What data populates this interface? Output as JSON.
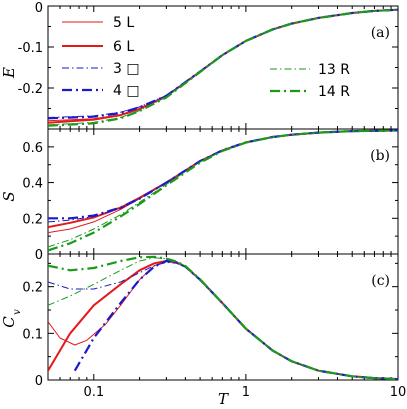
{
  "chart_data": [
    {
      "panel": "(a)",
      "type": "line",
      "ylabel": "E",
      "xlabel": "",
      "xscale": "log",
      "xlim": [
        0.05,
        10
      ],
      "ylim": [
        -0.3,
        0
      ],
      "xticks": [
        "0.1",
        "1",
        "10"
      ],
      "yticks": [
        "0",
        "-0.1",
        "-0.2"
      ],
      "legend_placement": "top-left and right",
      "series": [
        {
          "name": "5 L",
          "color": "#e31a1c",
          "style": "solid",
          "width": 1,
          "x": [
            0.05,
            0.1,
            0.15,
            0.2,
            0.3,
            0.5,
            0.7,
            1,
            1.5,
            2,
            3,
            5,
            7,
            10
          ],
          "y": [
            -0.28,
            -0.275,
            -0.265,
            -0.25,
            -0.22,
            -0.16,
            -0.12,
            -0.085,
            -0.057,
            -0.043,
            -0.029,
            -0.017,
            -0.012,
            -0.009
          ]
        },
        {
          "name": "6 L",
          "color": "#e31a1c",
          "style": "solid",
          "width": 2,
          "x": [
            0.05,
            0.1,
            0.15,
            0.2,
            0.3,
            0.5,
            0.7,
            1,
            1.5,
            2,
            3,
            5,
            7,
            10
          ],
          "y": [
            -0.285,
            -0.277,
            -0.266,
            -0.251,
            -0.22,
            -0.16,
            -0.12,
            -0.085,
            -0.057,
            -0.043,
            -0.029,
            -0.017,
            -0.012,
            -0.009
          ]
        },
        {
          "name": "3 □",
          "color": "#1a1acc",
          "style": "dashdot",
          "width": 1,
          "x": [
            0.05,
            0.1,
            0.15,
            0.2,
            0.3,
            0.5,
            0.7,
            1,
            1.5,
            2,
            3,
            5,
            7,
            10
          ],
          "y": [
            -0.272,
            -0.268,
            -0.259,
            -0.246,
            -0.218,
            -0.16,
            -0.12,
            -0.085,
            -0.057,
            -0.043,
            -0.029,
            -0.017,
            -0.012,
            -0.009
          ]
        },
        {
          "name": "4 □",
          "color": "#1a1acc",
          "style": "dashdot",
          "width": 2.2,
          "x": [
            0.05,
            0.1,
            0.15,
            0.2,
            0.3,
            0.5,
            0.7,
            1,
            1.5,
            2,
            3,
            5,
            7,
            10
          ],
          "y": [
            -0.274,
            -0.27,
            -0.261,
            -0.247,
            -0.219,
            -0.16,
            -0.12,
            -0.085,
            -0.057,
            -0.043,
            -0.029,
            -0.017,
            -0.012,
            -0.009
          ]
        },
        {
          "name": "13 R",
          "color": "#1a9a1a",
          "style": "dashdot",
          "width": 1,
          "x": [
            0.05,
            0.1,
            0.15,
            0.2,
            0.3,
            0.5,
            0.7,
            1,
            1.5,
            2,
            3,
            5,
            7,
            10
          ],
          "y": [
            -0.29,
            -0.284,
            -0.272,
            -0.255,
            -0.222,
            -0.161,
            -0.12,
            -0.085,
            -0.057,
            -0.043,
            -0.029,
            -0.017,
            -0.012,
            -0.009
          ]
        },
        {
          "name": "14 R",
          "color": "#1a9a1a",
          "style": "dashdot",
          "width": 2.2,
          "x": [
            0.05,
            0.1,
            0.15,
            0.2,
            0.3,
            0.5,
            0.7,
            1,
            1.5,
            2,
            3,
            5,
            7,
            10
          ],
          "y": [
            -0.292,
            -0.286,
            -0.274,
            -0.256,
            -0.223,
            -0.161,
            -0.12,
            -0.085,
            -0.057,
            -0.043,
            -0.029,
            -0.017,
            -0.012,
            -0.009
          ]
        }
      ]
    },
    {
      "panel": "(b)",
      "type": "line",
      "ylabel": "S",
      "xlabel": "",
      "xscale": "log",
      "xlim": [
        0.05,
        10
      ],
      "ylim": [
        0,
        0.7
      ],
      "xticks": [
        "0.1",
        "1",
        "10"
      ],
      "yticks": [
        "0",
        "0.2",
        "0.4",
        "0.6"
      ],
      "series": [
        {
          "name": "5 L",
          "color": "#e31a1c",
          "style": "solid",
          "width": 1,
          "x": [
            0.05,
            0.07,
            0.1,
            0.15,
            0.2,
            0.3,
            0.5,
            0.7,
            1,
            1.5,
            2,
            3,
            5,
            7,
            10
          ],
          "y": [
            0.12,
            0.14,
            0.18,
            0.25,
            0.31,
            0.4,
            0.52,
            0.58,
            0.625,
            0.655,
            0.668,
            0.68,
            0.688,
            0.69,
            0.692
          ]
        },
        {
          "name": "6 L",
          "color": "#e31a1c",
          "style": "solid",
          "width": 2,
          "x": [
            0.05,
            0.07,
            0.1,
            0.15,
            0.2,
            0.3,
            0.5,
            0.7,
            1,
            1.5,
            2,
            3,
            5,
            7,
            10
          ],
          "y": [
            0.15,
            0.175,
            0.205,
            0.26,
            0.315,
            0.4,
            0.52,
            0.58,
            0.625,
            0.655,
            0.668,
            0.68,
            0.688,
            0.69,
            0.692
          ]
        },
        {
          "name": "3 □",
          "color": "#1a1acc",
          "style": "dashdot",
          "width": 1,
          "x": [
            0.05,
            0.07,
            0.1,
            0.15,
            0.2,
            0.3,
            0.5,
            0.7,
            1,
            1.5,
            2,
            3,
            5,
            7,
            10
          ],
          "y": [
            0.18,
            0.19,
            0.21,
            0.255,
            0.31,
            0.4,
            0.52,
            0.58,
            0.625,
            0.655,
            0.668,
            0.68,
            0.688,
            0.69,
            0.692
          ]
        },
        {
          "name": "4 □",
          "color": "#1a1acc",
          "style": "dashdot",
          "width": 2.2,
          "x": [
            0.05,
            0.07,
            0.1,
            0.15,
            0.2,
            0.3,
            0.5,
            0.7,
            1,
            1.5,
            2,
            3,
            5,
            7,
            10
          ],
          "y": [
            0.2,
            0.2,
            0.215,
            0.26,
            0.31,
            0.4,
            0.52,
            0.58,
            0.625,
            0.655,
            0.668,
            0.68,
            0.688,
            0.69,
            0.692
          ]
        },
        {
          "name": "13 R",
          "color": "#1a9a1a",
          "style": "dashdot",
          "width": 1,
          "x": [
            0.05,
            0.07,
            0.1,
            0.15,
            0.2,
            0.3,
            0.5,
            0.7,
            1,
            1.5,
            2,
            3,
            5,
            7,
            10
          ],
          "y": [
            0.04,
            0.08,
            0.14,
            0.22,
            0.29,
            0.39,
            0.515,
            0.578,
            0.624,
            0.655,
            0.668,
            0.68,
            0.688,
            0.69,
            0.692
          ]
        },
        {
          "name": "14 R",
          "color": "#1a9a1a",
          "style": "dashdot",
          "width": 2.2,
          "x": [
            0.05,
            0.07,
            0.1,
            0.15,
            0.2,
            0.3,
            0.5,
            0.7,
            1,
            1.5,
            2,
            3,
            5,
            7,
            10
          ],
          "y": [
            0.02,
            0.06,
            0.12,
            0.21,
            0.28,
            0.385,
            0.512,
            0.577,
            0.624,
            0.655,
            0.668,
            0.68,
            0.688,
            0.69,
            0.692
          ]
        }
      ]
    },
    {
      "panel": "(c)",
      "type": "line",
      "ylabel": "C",
      "ylabel_subscript": "v",
      "xlabel": "T",
      "xscale": "log",
      "xlim": [
        0.05,
        10
      ],
      "ylim": [
        0,
        0.27
      ],
      "xticks": [
        "0.1",
        "1",
        "10"
      ],
      "yticks": [
        "0",
        "0.1",
        "0.2"
      ],
      "series": [
        {
          "name": "5 L",
          "color": "#e31a1c",
          "style": "solid",
          "width": 1,
          "x": [
            0.05,
            0.06,
            0.075,
            0.09,
            0.12,
            0.15,
            0.2,
            0.25,
            0.3,
            0.35,
            0.4,
            0.5,
            0.7,
            1,
            1.5,
            2,
            3,
            5,
            7,
            10
          ],
          "y": [
            0.125,
            0.09,
            0.075,
            0.085,
            0.12,
            0.16,
            0.215,
            0.245,
            0.255,
            0.252,
            0.243,
            0.215,
            0.165,
            0.11,
            0.063,
            0.04,
            0.02,
            0.008,
            0.004,
            0.002
          ]
        },
        {
          "name": "6 L",
          "color": "#e31a1c",
          "style": "solid",
          "width": 2,
          "x": [
            0.05,
            0.07,
            0.1,
            0.15,
            0.2,
            0.25,
            0.3,
            0.35,
            0.4,
            0.5,
            0.7,
            1,
            1.5,
            2,
            3,
            5,
            7,
            10
          ],
          "y": [
            0.02,
            0.1,
            0.16,
            0.205,
            0.235,
            0.25,
            0.255,
            0.252,
            0.243,
            0.215,
            0.165,
            0.11,
            0.063,
            0.04,
            0.02,
            0.008,
            0.004,
            0.002
          ]
        },
        {
          "name": "3 □",
          "color": "#1a1acc",
          "style": "dashdot",
          "width": 1,
          "x": [
            0.05,
            0.07,
            0.1,
            0.15,
            0.2,
            0.25,
            0.3,
            0.35,
            0.4,
            0.5,
            0.7,
            1,
            1.5,
            2,
            3,
            5,
            7,
            10
          ],
          "y": [
            0.21,
            0.195,
            0.195,
            0.21,
            0.23,
            0.245,
            0.252,
            0.25,
            0.242,
            0.215,
            0.165,
            0.11,
            0.063,
            0.04,
            0.02,
            0.008,
            0.004,
            0.002
          ]
        },
        {
          "name": "4 □",
          "color": "#1a1acc",
          "style": "dashdot",
          "width": 2.2,
          "x": [
            0.075,
            0.1,
            0.15,
            0.2,
            0.25,
            0.3,
            0.35,
            0.4,
            0.5,
            0.7,
            1,
            1.5,
            2,
            3,
            5,
            7,
            10
          ],
          "y": [
            0.02,
            0.09,
            0.165,
            0.215,
            0.243,
            0.255,
            0.252,
            0.243,
            0.215,
            0.165,
            0.11,
            0.063,
            0.04,
            0.02,
            0.008,
            0.004,
            0.002
          ]
        },
        {
          "name": "13 R",
          "color": "#1a9a1a",
          "style": "dashdot",
          "width": 1,
          "x": [
            0.05,
            0.07,
            0.1,
            0.15,
            0.2,
            0.25,
            0.3,
            0.35,
            0.4,
            0.5,
            0.7,
            1,
            1.5,
            2,
            3,
            5,
            7,
            10
          ],
          "y": [
            0.16,
            0.18,
            0.205,
            0.235,
            0.255,
            0.262,
            0.26,
            0.254,
            0.244,
            0.216,
            0.165,
            0.11,
            0.063,
            0.04,
            0.02,
            0.008,
            0.004,
            0.002
          ]
        },
        {
          "name": "14 R",
          "color": "#1a9a1a",
          "style": "dashdot",
          "width": 2.2,
          "x": [
            0.05,
            0.07,
            0.1,
            0.15,
            0.2,
            0.25,
            0.3,
            0.35,
            0.4,
            0.5,
            0.7,
            1,
            1.5,
            2,
            3,
            5,
            7,
            10
          ],
          "y": [
            0.245,
            0.235,
            0.24,
            0.255,
            0.263,
            0.264,
            0.26,
            0.254,
            0.244,
            0.216,
            0.165,
            0.11,
            0.063,
            0.04,
            0.02,
            0.008,
            0.004,
            0.002
          ]
        }
      ]
    }
  ]
}
